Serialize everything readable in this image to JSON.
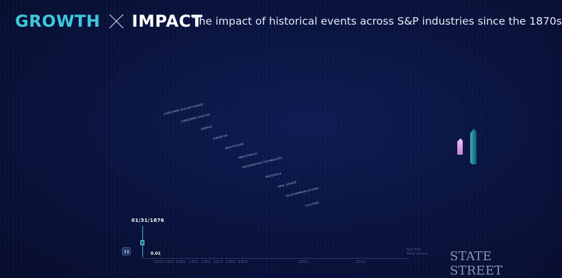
{
  "header": {
    "brand_left": "GROWTH",
    "brand_right": "IMPACT",
    "subtitle": "The impact of historical events across S&P industries since the 1870s"
  },
  "industries": [
    "CONSUMER DISCRETIONARY",
    "CONSUMER STAPLES",
    "ENERGY",
    "FINANCIAL",
    "HEALTHCARE",
    "INDUSTRIALS",
    "INFORMATION TECHNOLOGY",
    "MATERIALS",
    "REAL ESTATE",
    "TELECOMMUNICATIONS",
    "UTILITIES"
  ],
  "timeline": {
    "current_date": "01/31/1876",
    "current_value": "0.01",
    "years": [
      "1920",
      "1930",
      "1940",
      "1950",
      "1960",
      "1970",
      "1980",
      "1990",
      "2000",
      "2010"
    ]
  },
  "axis": {
    "title_line1": "S&P 500",
    "title_line2": "Total returns"
  },
  "logo": "STATE STREET",
  "colors": {
    "accent_cyan": "#3ec8dc",
    "background": "#0a1440",
    "bar_pink": "#e3a8ea",
    "bar_teal": "#2b93ab"
  },
  "icons": {
    "pause": "pause-icon",
    "cross": "cross-icon"
  }
}
